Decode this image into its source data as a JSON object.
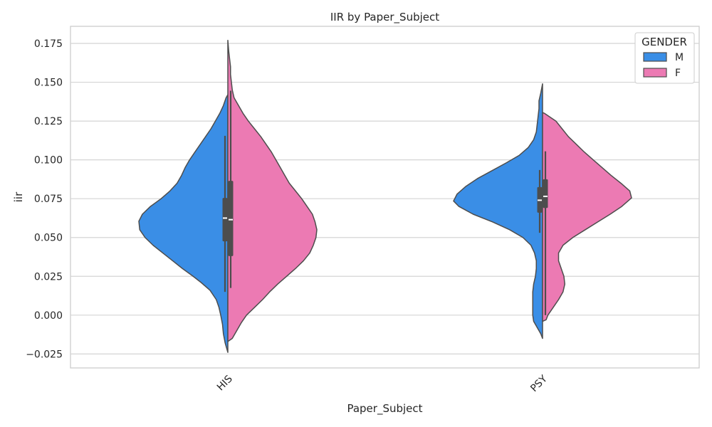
{
  "chart_data": {
    "type": "violin",
    "title": "IIR by Paper_Subject",
    "xlabel": "Paper_Subject",
    "ylabel": "iir",
    "categories": [
      "HIS",
      "PSY"
    ],
    "ylim": [
      -0.034,
      0.186
    ],
    "yticks": [
      -0.025,
      0.0,
      0.025,
      0.05,
      0.075,
      0.1,
      0.125,
      0.15,
      0.175
    ],
    "ytick_labels": [
      "−0.025",
      "0.000",
      "0.025",
      "0.050",
      "0.075",
      "0.100",
      "0.125",
      "0.150",
      "0.175"
    ],
    "grid": true,
    "split": true,
    "legend": {
      "title": "GENDER",
      "placement": "top-right"
    },
    "series": [
      {
        "name": "M",
        "color": "#3A8EE6",
        "data": [
          {
            "category": "HIS",
            "min": 0.015,
            "q1": 0.0475,
            "median": 0.0625,
            "q3": 0.0755,
            "max": 0.1155,
            "density": [
              [
                -0.024,
                0.0
              ],
              [
                -0.018,
                0.03
              ],
              [
                -0.012,
                0.05
              ],
              [
                -0.006,
                0.06
              ],
              [
                0.0,
                0.08
              ],
              [
                0.005,
                0.1
              ],
              [
                0.01,
                0.13
              ],
              [
                0.016,
                0.2
              ],
              [
                0.021,
                0.3
              ],
              [
                0.025,
                0.39
              ],
              [
                0.03,
                0.51
              ],
              [
                0.035,
                0.62
              ],
              [
                0.04,
                0.73
              ],
              [
                0.045,
                0.84
              ],
              [
                0.05,
                0.93
              ],
              [
                0.055,
                0.99
              ],
              [
                0.0605,
                1.0
              ],
              [
                0.065,
                0.96
              ],
              [
                0.07,
                0.87
              ],
              [
                0.075,
                0.75
              ],
              [
                0.08,
                0.65
              ],
              [
                0.085,
                0.57
              ],
              [
                0.09,
                0.52
              ],
              [
                0.095,
                0.48
              ],
              [
                0.1,
                0.43
              ],
              [
                0.105,
                0.37
              ],
              [
                0.11,
                0.31
              ],
              [
                0.115,
                0.25
              ],
              [
                0.12,
                0.19
              ],
              [
                0.125,
                0.14
              ],
              [
                0.13,
                0.09
              ],
              [
                0.135,
                0.05
              ],
              [
                0.14,
                0.02
              ],
              [
                0.142,
                0.0
              ]
            ]
          },
          {
            "category": "PSY",
            "min": 0.053,
            "q1": 0.066,
            "median": 0.074,
            "q3": 0.0825,
            "max": 0.0935,
            "density": [
              [
                -0.015,
                0.0
              ],
              [
                -0.012,
                0.02
              ],
              [
                -0.008,
                0.06
              ],
              [
                -0.004,
                0.1
              ],
              [
                0.0,
                0.11
              ],
              [
                0.005,
                0.11
              ],
              [
                0.01,
                0.11
              ],
              [
                0.015,
                0.11
              ],
              [
                0.02,
                0.1
              ],
              [
                0.025,
                0.08
              ],
              [
                0.03,
                0.07
              ],
              [
                0.035,
                0.07
              ],
              [
                0.04,
                0.09
              ],
              [
                0.045,
                0.13
              ],
              [
                0.05,
                0.22
              ],
              [
                0.055,
                0.37
              ],
              [
                0.06,
                0.56
              ],
              [
                0.065,
                0.78
              ],
              [
                0.07,
                0.94
              ],
              [
                0.0735,
                1.0
              ],
              [
                0.078,
                0.96
              ],
              [
                0.083,
                0.86
              ],
              [
                0.088,
                0.73
              ],
              [
                0.093,
                0.57
              ],
              [
                0.098,
                0.41
              ],
              [
                0.103,
                0.26
              ],
              [
                0.108,
                0.16
              ],
              [
                0.113,
                0.1
              ],
              [
                0.118,
                0.07
              ],
              [
                0.123,
                0.06
              ],
              [
                0.128,
                0.05
              ],
              [
                0.133,
                0.04
              ],
              [
                0.138,
                0.04
              ],
              [
                0.143,
                0.02
              ],
              [
                0.149,
                0.0
              ]
            ]
          }
        ]
      },
      {
        "name": "F",
        "color": "#EC7AB3",
        "data": [
          {
            "category": "HIS",
            "min": 0.0175,
            "q1": 0.038,
            "median": 0.0615,
            "q3": 0.0865,
            "max": 0.1445,
            "density": [
              [
                -0.017,
                0.0
              ],
              [
                -0.015,
                0.05
              ],
              [
                -0.01,
                0.1
              ],
              [
                -0.005,
                0.15
              ],
              [
                0.0,
                0.21
              ],
              [
                0.005,
                0.3
              ],
              [
                0.01,
                0.39
              ],
              [
                0.015,
                0.47
              ],
              [
                0.02,
                0.56
              ],
              [
                0.025,
                0.66
              ],
              [
                0.03,
                0.76
              ],
              [
                0.035,
                0.85
              ],
              [
                0.04,
                0.92
              ],
              [
                0.045,
                0.96
              ],
              [
                0.05,
                0.99
              ],
              [
                0.055,
                1.0
              ],
              [
                0.06,
                0.98
              ],
              [
                0.065,
                0.95
              ],
              [
                0.07,
                0.89
              ],
              [
                0.075,
                0.83
              ],
              [
                0.08,
                0.76
              ],
              [
                0.085,
                0.69
              ],
              [
                0.09,
                0.64
              ],
              [
                0.095,
                0.59
              ],
              [
                0.1,
                0.54
              ],
              [
                0.105,
                0.49
              ],
              [
                0.11,
                0.43
              ],
              [
                0.115,
                0.37
              ],
              [
                0.12,
                0.3
              ],
              [
                0.125,
                0.23
              ],
              [
                0.13,
                0.17
              ],
              [
                0.135,
                0.12
              ],
              [
                0.14,
                0.07
              ],
              [
                0.145,
                0.05
              ],
              [
                0.15,
                0.04
              ],
              [
                0.155,
                0.03
              ],
              [
                0.16,
                0.03
              ],
              [
                0.165,
                0.02
              ],
              [
                0.17,
                0.01
              ],
              [
                0.177,
                0.0
              ]
            ]
          },
          {
            "category": "PSY",
            "min": 0.0,
            "q1": 0.069,
            "median": 0.0765,
            "q3": 0.0875,
            "max": 0.1055,
            "density": [
              [
                -0.004,
                0.0
              ],
              [
                -0.003,
                0.04
              ],
              [
                0.0,
                0.06
              ],
              [
                0.005,
                0.12
              ],
              [
                0.01,
                0.18
              ],
              [
                0.015,
                0.23
              ],
              [
                0.02,
                0.25
              ],
              [
                0.025,
                0.24
              ],
              [
                0.03,
                0.21
              ],
              [
                0.035,
                0.18
              ],
              [
                0.04,
                0.18
              ],
              [
                0.045,
                0.23
              ],
              [
                0.05,
                0.34
              ],
              [
                0.055,
                0.48
              ],
              [
                0.06,
                0.62
              ],
              [
                0.065,
                0.76
              ],
              [
                0.07,
                0.89
              ],
              [
                0.0755,
                1.0
              ],
              [
                0.08,
                0.98
              ],
              [
                0.085,
                0.88
              ],
              [
                0.09,
                0.77
              ],
              [
                0.095,
                0.67
              ],
              [
                0.1,
                0.57
              ],
              [
                0.105,
                0.47
              ],
              [
                0.11,
                0.38
              ],
              [
                0.115,
                0.29
              ],
              [
                0.12,
                0.22
              ],
              [
                0.125,
                0.15
              ],
              [
                0.13,
                0.02
              ],
              [
                0.1305,
                0.0
              ]
            ]
          }
        ]
      }
    ]
  }
}
